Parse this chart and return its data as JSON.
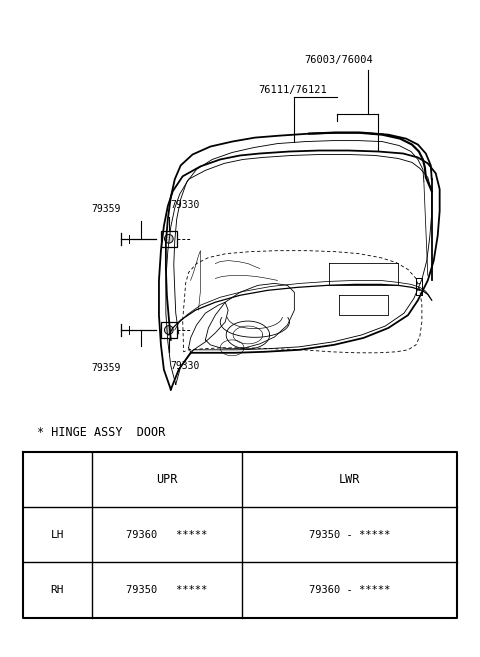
{
  "bg_color": "#ffffff",
  "label_76003": "76003/76004",
  "label_76111": "76111/76121",
  "label_79359_ul": "79359",
  "label_79330_ul": "79330",
  "label_79330_ll": "79330",
  "label_79359_ll": "79359",
  "table_title": "* HINGE ASSY  DOOR",
  "table_headers": [
    "",
    "UPR",
    "LWR"
  ],
  "table_rows": [
    [
      "LH",
      "79360   *****",
      "79350 - *****"
    ],
    [
      "RH",
      "79350   *****",
      "79360 - *****"
    ]
  ]
}
